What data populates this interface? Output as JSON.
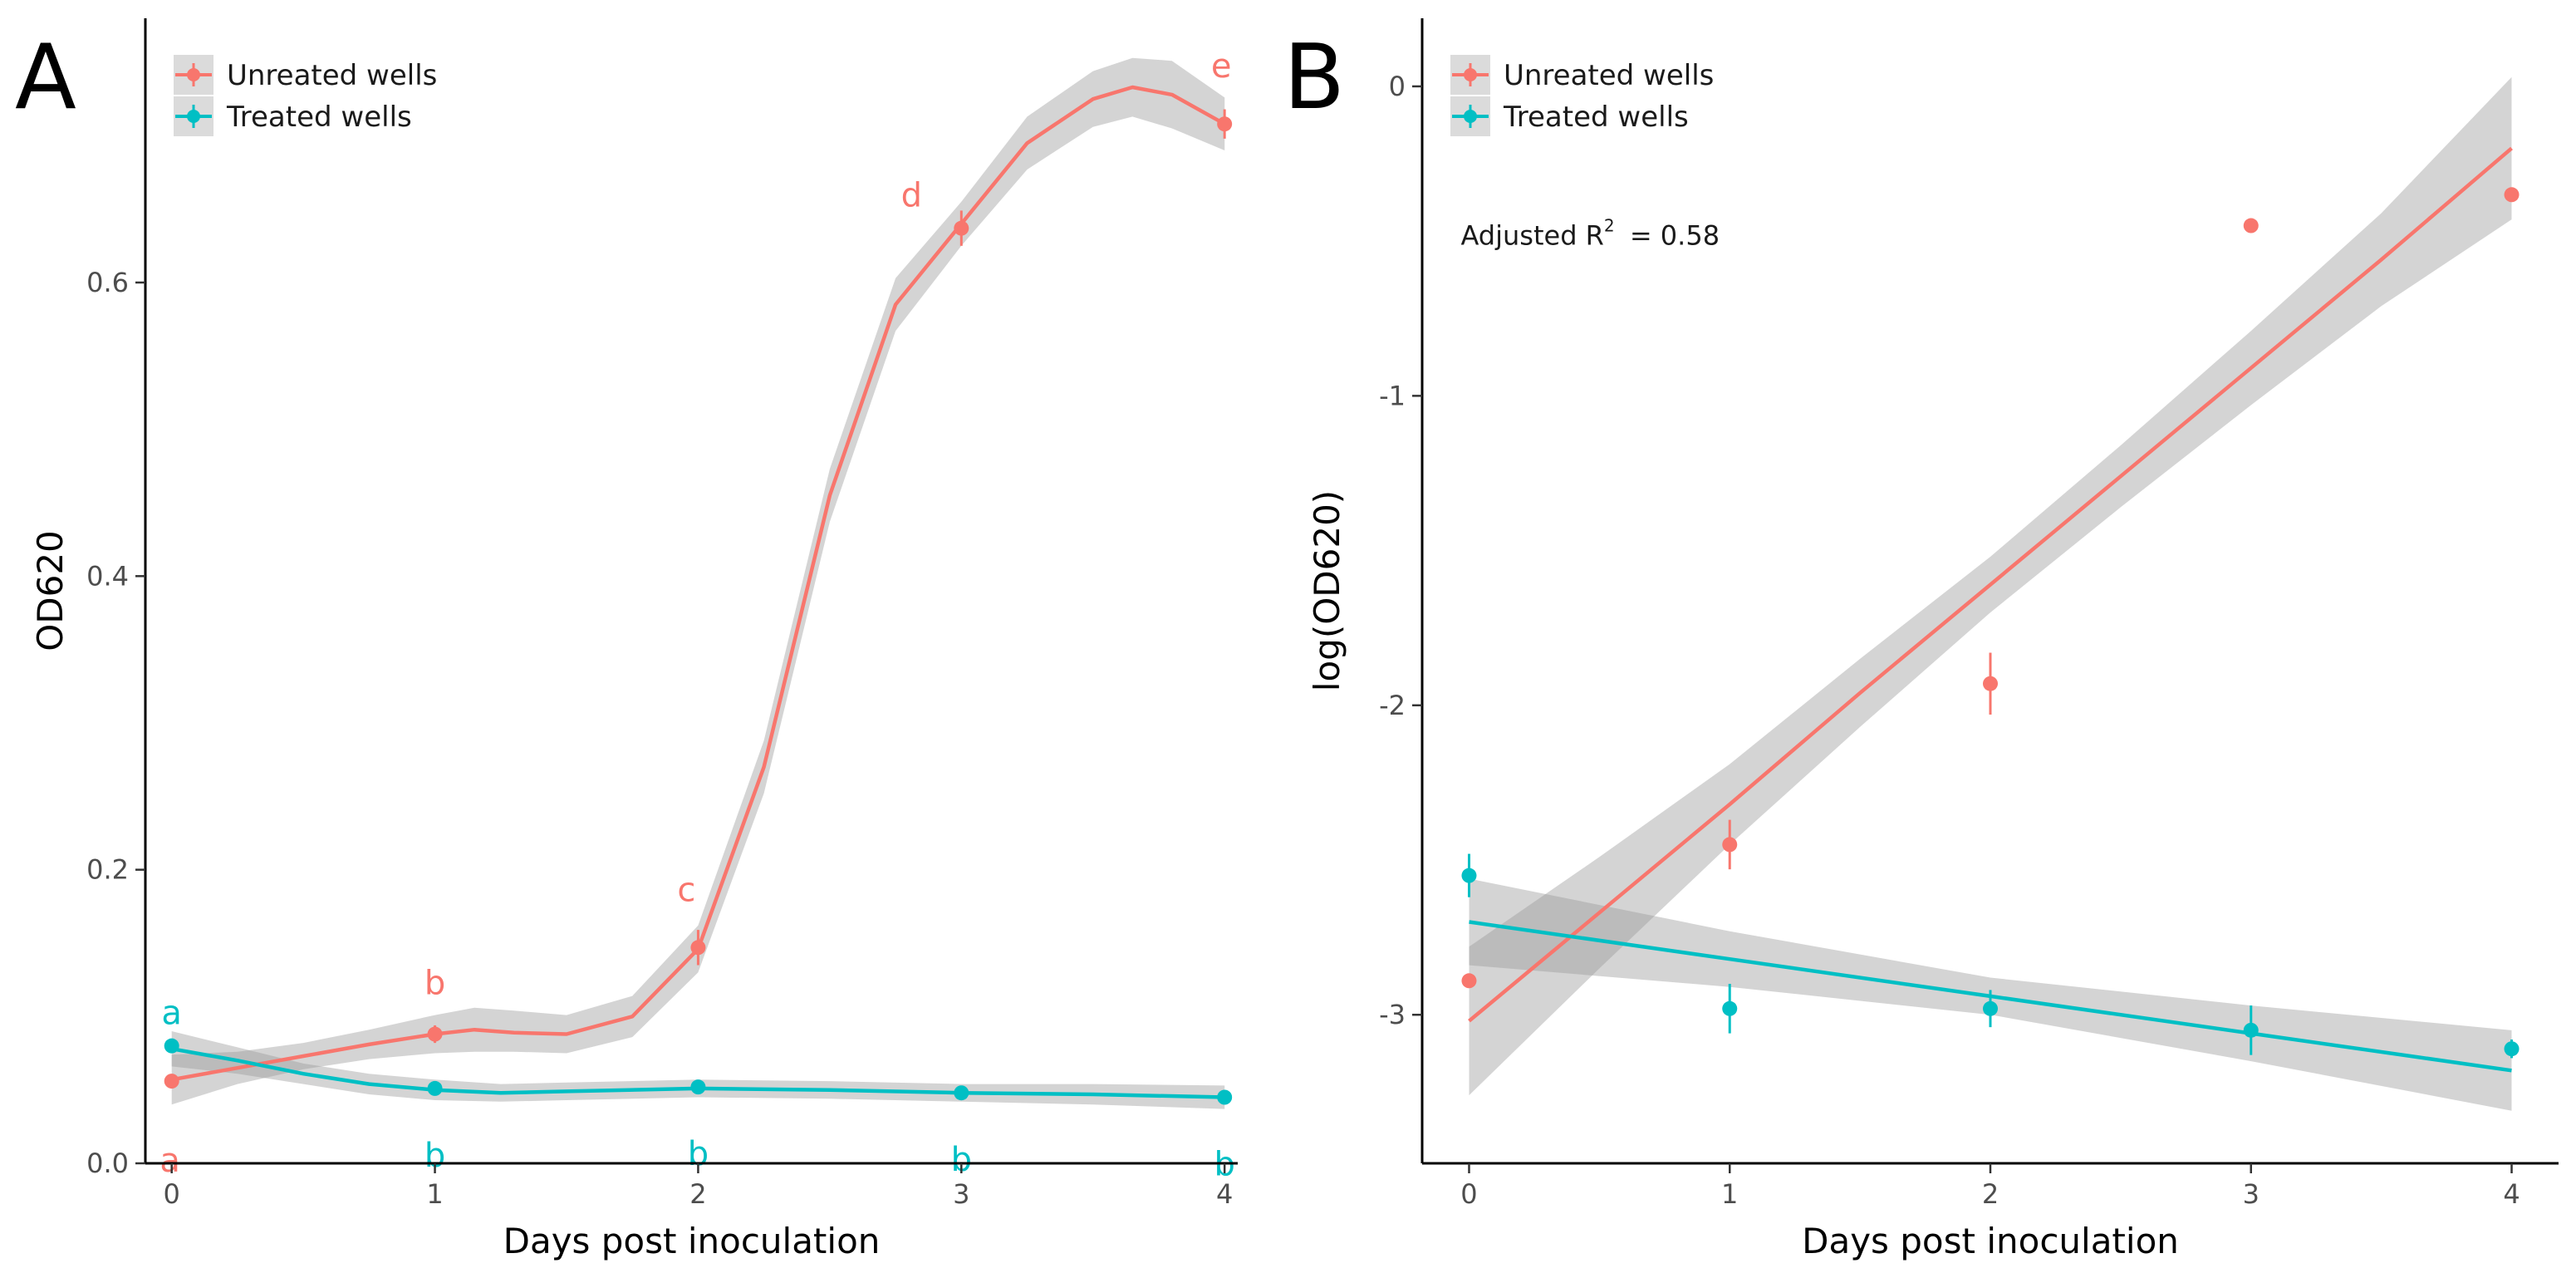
{
  "colors": {
    "untreated": "#F8766D",
    "treated": "#00BFC4",
    "ribbon": "#999999",
    "ribbon_alpha": 0.42
  },
  "chart_data": [
    {
      "panel": "A",
      "type": "line",
      "xlabel": "Days post inoculation",
      "ylabel": "OD620",
      "xlim": [
        -0.1,
        4.05
      ],
      "ylim": [
        0.0,
        0.78
      ],
      "x_ticks": [
        0,
        1,
        2,
        3,
        4
      ],
      "x_tick_labels": [
        "0",
        "1",
        "2",
        "3",
        "4"
      ],
      "y_ticks": [
        0.0,
        0.2,
        0.4,
        0.6
      ],
      "y_tick_labels": [
        "0.0",
        "0.2",
        "0.4",
        "0.6"
      ],
      "legend_position": "top-left",
      "series": [
        {
          "name": "Unreated wells",
          "color_key": "untreated",
          "points": [
            {
              "x": 0,
              "y": 0.056,
              "err": 0.004,
              "letter": "a"
            },
            {
              "x": 1,
              "y": 0.088,
              "err": 0.006,
              "letter": "b"
            },
            {
              "x": 2,
              "y": 0.147,
              "err": 0.012,
              "letter": "c"
            },
            {
              "x": 3,
              "y": 0.637,
              "err": 0.012,
              "letter": "d"
            },
            {
              "x": 4,
              "y": 0.708,
              "err": 0.01,
              "letter": "e"
            }
          ],
          "fit": {
            "x": [
              0,
              0.25,
              0.5,
              0.75,
              1.0,
              1.15,
              1.3,
              1.5,
              1.75,
              2.0,
              2.25,
              2.5,
              2.75,
              3.0,
              3.25,
              3.5,
              3.65,
              3.8,
              4.0
            ],
            "y": [
              0.057,
              0.065,
              0.073,
              0.081,
              0.088,
              0.091,
              0.089,
              0.088,
              0.1,
              0.146,
              0.27,
              0.455,
              0.585,
              0.64,
              0.695,
              0.725,
              0.733,
              0.728,
              0.708
            ],
            "lo": [
              0.04,
              0.054,
              0.064,
              0.071,
              0.075,
              0.076,
              0.076,
              0.075,
              0.086,
              0.13,
              0.252,
              0.437,
              0.567,
              0.625,
              0.677,
              0.706,
              0.713,
              0.705,
              0.69
            ],
            "hi": [
              0.074,
              0.076,
              0.082,
              0.091,
              0.101,
              0.106,
              0.104,
              0.101,
              0.114,
              0.162,
              0.288,
              0.473,
              0.603,
              0.655,
              0.713,
              0.744,
              0.753,
              0.751,
              0.726
            ]
          }
        },
        {
          "name": "Treated wells",
          "color_key": "treated",
          "points": [
            {
              "x": 0,
              "y": 0.08,
              "err": 0.003,
              "letter": "a"
            },
            {
              "x": 1,
              "y": 0.051,
              "err": 0.003,
              "letter": "b"
            },
            {
              "x": 2,
              "y": 0.052,
              "err": 0.003,
              "letter": "b"
            },
            {
              "x": 3,
              "y": 0.048,
              "err": 0.003,
              "letter": "b"
            },
            {
              "x": 4,
              "y": 0.045,
              "err": 0.003,
              "letter": "b"
            }
          ],
          "fit": {
            "x": [
              0,
              0.25,
              0.5,
              0.75,
              1.0,
              1.25,
              1.5,
              2.0,
              2.5,
              3.0,
              3.5,
              4.0
            ],
            "y": [
              0.078,
              0.07,
              0.061,
              0.054,
              0.05,
              0.048,
              0.049,
              0.051,
              0.05,
              0.048,
              0.047,
              0.045
            ],
            "lo": [
              0.066,
              0.061,
              0.054,
              0.047,
              0.043,
              0.042,
              0.043,
              0.045,
              0.044,
              0.042,
              0.04,
              0.037
            ],
            "hi": [
              0.09,
              0.079,
              0.068,
              0.061,
              0.057,
              0.054,
              0.055,
              0.057,
              0.056,
              0.054,
              0.054,
              0.053
            ]
          }
        }
      ]
    },
    {
      "panel": "B",
      "type": "scatter",
      "xlabel": "Days post inoculation",
      "ylabel": "log(OD620)",
      "xlim": [
        -0.18,
        4.18
      ],
      "ylim": [
        -3.48,
        0.22
      ],
      "x_ticks": [
        0,
        1,
        2,
        3,
        4
      ],
      "x_tick_labels": [
        "0",
        "1",
        "2",
        "3",
        "4"
      ],
      "y_ticks": [
        -3,
        -2,
        -1,
        0
      ],
      "y_tick_labels": [
        "-3",
        "-2",
        "-1",
        "0"
      ],
      "legend_position": "top-left",
      "annotation": {
        "prefix": "Adjusted R",
        "superscript": "2",
        "suffix": " = 0.58",
        "x": 0.0,
        "y": -0.48
      },
      "series": [
        {
          "name": "Unreated wells",
          "color_key": "untreated",
          "points": [
            {
              "x": 0,
              "y": -2.89,
              "err": 0.0
            },
            {
              "x": 1,
              "y": -2.45,
              "err": 0.08
            },
            {
              "x": 2,
              "y": -1.93,
              "err": 0.1
            },
            {
              "x": 3,
              "y": -0.45,
              "err": 0.0
            },
            {
              "x": 4,
              "y": -0.35,
              "err": 0.0
            }
          ],
          "fit": {
            "x": [
              0,
              0.5,
              1,
              1.5,
              2,
              2.5,
              3,
              3.5,
              4
            ],
            "y": [
              -3.02,
              -2.67,
              -2.32,
              -1.96,
              -1.61,
              -1.26,
              -0.91,
              -0.56,
              -0.2
            ],
            "lo": [
              -3.26,
              -2.85,
              -2.45,
              -2.07,
              -1.7,
              -1.36,
              -1.03,
              -0.71,
              -0.43
            ],
            "hi": [
              -2.78,
              -2.49,
              -2.19,
              -1.85,
              -1.52,
              -1.16,
              -0.79,
              -0.41,
              0.03
            ]
          }
        },
        {
          "name": "Treated wells",
          "color_key": "treated",
          "points": [
            {
              "x": 0,
              "y": -2.55,
              "err": 0.07
            },
            {
              "x": 1,
              "y": -2.98,
              "err": 0.08
            },
            {
              "x": 2,
              "y": -2.98,
              "err": 0.06
            },
            {
              "x": 3,
              "y": -3.05,
              "err": 0.08
            },
            {
              "x": 4,
              "y": -3.11,
              "err": 0.03
            }
          ],
          "fit": {
            "x": [
              0,
              1,
              2,
              3,
              4
            ],
            "y": [
              -2.7,
              -2.82,
              -2.94,
              -3.06,
              -3.18
            ],
            "lo": [
              -2.84,
              -2.91,
              -3.0,
              -3.15,
              -3.31
            ],
            "hi": [
              -2.56,
              -2.73,
              -2.88,
              -2.97,
              -3.05
            ]
          }
        }
      ]
    }
  ]
}
